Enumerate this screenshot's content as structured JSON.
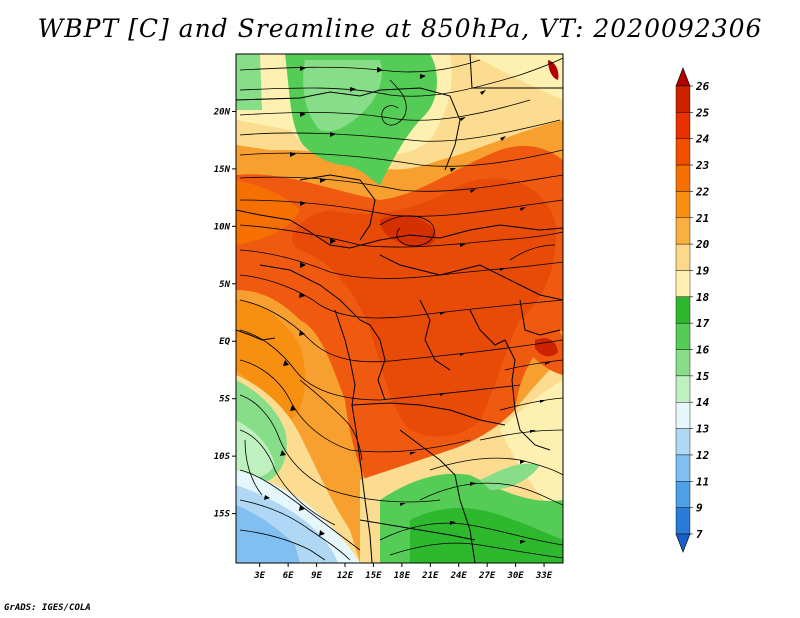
{
  "title": "WBPT [C] and Sreamline at 850hPa, VT: 2020092306",
  "credit": "GrADS: IGES/COLA",
  "map": {
    "lat_labels": [
      "20N",
      "15N",
      "10N",
      "5N",
      "EQ",
      "5S",
      "10S",
      "15S"
    ],
    "lat_values": [
      20,
      15,
      10,
      5,
      0,
      -5,
      -10,
      -15
    ],
    "lon_labels": [
      "3E",
      "6E",
      "9E",
      "12E",
      "15E",
      "18E",
      "21E",
      "24E",
      "27E",
      "30E",
      "33E"
    ],
    "lon_values": [
      3,
      6,
      9,
      12,
      15,
      18,
      21,
      24,
      27,
      30,
      33
    ],
    "lon_range": [
      0.5,
      35
    ],
    "lat_range": [
      -19.3,
      25
    ]
  },
  "colorbar": {
    "labels": [
      "26",
      "25",
      "24",
      "23",
      "22",
      "21",
      "20",
      "19",
      "18",
      "17",
      "16",
      "15",
      "14",
      "13",
      "12",
      "11",
      "9",
      "7"
    ],
    "colors": [
      "#b30000",
      "#cc2200",
      "#e83000",
      "#f05000",
      "#f57000",
      "#f79010",
      "#f8b040",
      "#fbd88a",
      "#fdf0b0",
      "#2eb82e",
      "#55cc55",
      "#88dd88",
      "#bff0bf",
      "#e6f7fb",
      "#b0d8f4",
      "#80bff0",
      "#4d9fe6",
      "#2a7ad8",
      "#1a5fc8"
    ]
  }
}
